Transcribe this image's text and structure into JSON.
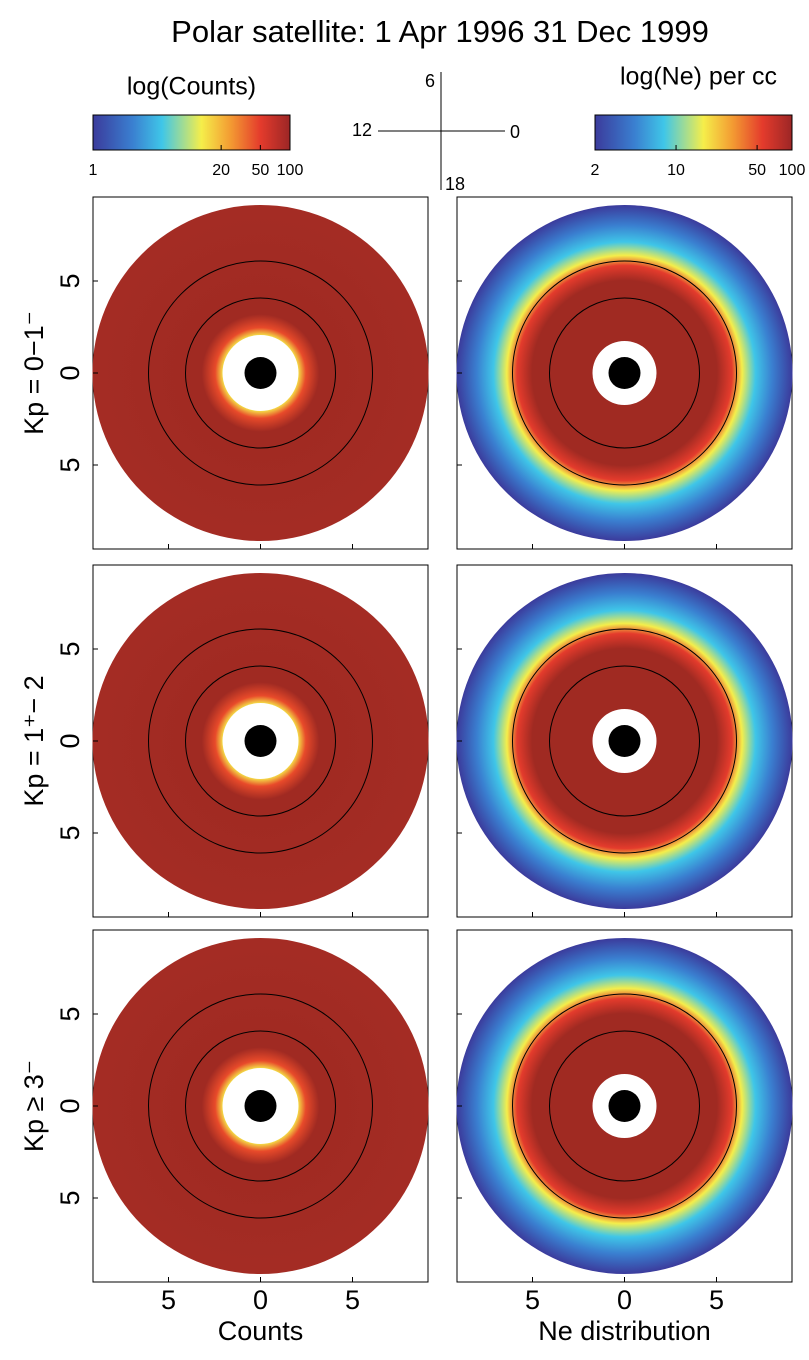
{
  "chart_data": {
    "type": "polar-heatmap",
    "title": "Polar satellite: 1 Apr 1996  31 Dec 1999",
    "colorbars": [
      {
        "label": "log(Counts)",
        "log_scale": true,
        "lim": [
          1,
          100
        ],
        "ticks": [
          1,
          20,
          50,
          100
        ]
      },
      {
        "label": "log(Ne) per cc",
        "log_scale": true,
        "lim": [
          2,
          100
        ],
        "ticks": [
          2,
          10,
          50,
          100
        ]
      }
    ],
    "mlt_key": {
      "top": "6",
      "left": "12",
      "right": "0",
      "bottom": "18"
    },
    "rows": [
      "Kp = 0−1⁻",
      "Kp = 1⁺− 2",
      "Kp ≥ 3⁻"
    ],
    "columns": [
      "Counts",
      "Ne distribution"
    ],
    "xlim": [
      -9,
      9
    ],
    "ylim": [
      -9,
      9
    ],
    "xticks": [
      {
        "value": -5,
        "label": "5"
      },
      0,
      5
    ],
    "yticks": [
      5,
      0,
      {
        "value": -5,
        "label": "5"
      }
    ]
  }
}
